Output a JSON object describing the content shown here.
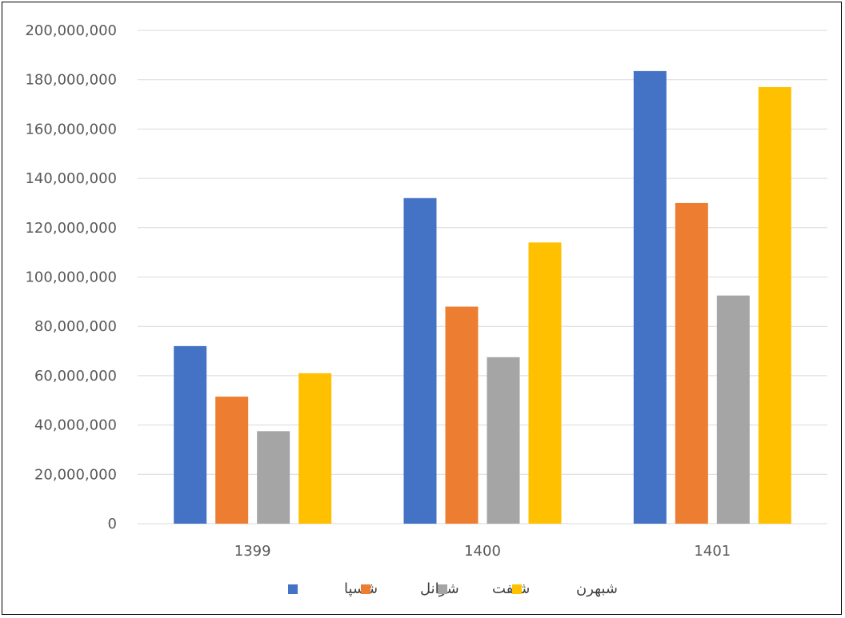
{
  "chart_data": {
    "type": "bar",
    "title": "",
    "xlabel": "",
    "ylabel": "",
    "categories": [
      "1399",
      "1400",
      "1401"
    ],
    "ylim": [
      0,
      200000000
    ],
    "yticks": [
      0,
      20000000,
      40000000,
      60000000,
      80000000,
      100000000,
      120000000,
      140000000,
      160000000,
      180000000,
      200000000
    ],
    "ytick_labels": [
      "0",
      "20,000,000",
      "40,000,000",
      "60,000,000",
      "80,000,000",
      "100,000,000",
      "120,000,000",
      "140,000,000",
      "160,000,000",
      "180,000,000",
      "200,000,000"
    ],
    "grid": true,
    "legend_position": "bottom",
    "series": [
      {
        "name": "شسپا",
        "color": "#4472C4",
        "values": [
          72000000,
          132000000,
          183500000
        ]
      },
      {
        "name": "شرانل",
        "color": "#ED7D31",
        "values": [
          51500000,
          88000000,
          130000000
        ]
      },
      {
        "name": "شنفت",
        "color": "#A5A5A5",
        "values": [
          37500000,
          67500000,
          92500000
        ]
      },
      {
        "name": "شبهرن",
        "color": "#FFC000",
        "values": [
          61000000,
          114000000,
          177000000
        ]
      }
    ]
  }
}
